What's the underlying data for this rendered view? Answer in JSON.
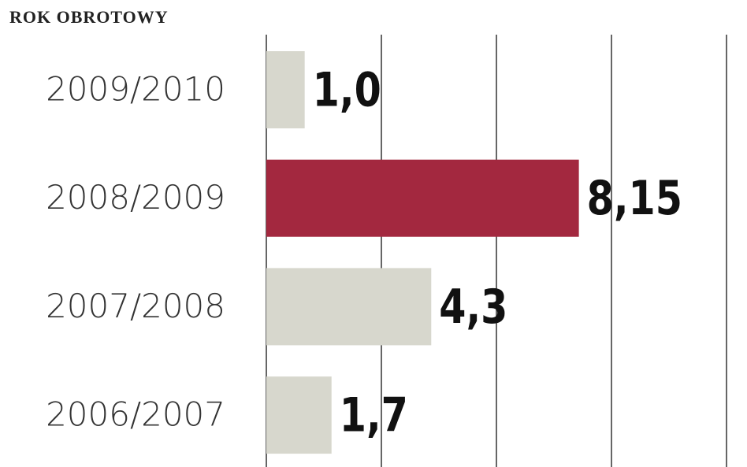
{
  "chart_data": {
    "type": "barh",
    "title": "ROK OBROTOWY",
    "categories": [
      "2009/2010",
      "2008/2009",
      "2007/2008",
      "2006/2007"
    ],
    "values": [
      1.0,
      8.15,
      4.3,
      1.7
    ],
    "value_labels": [
      "1,0",
      "8,15",
      "4,3",
      "1,7"
    ],
    "colors": [
      "#d7d7cd",
      "#a3283f",
      "#d7d7cd",
      "#d7d7cd"
    ],
    "xlim": [
      0,
      12
    ],
    "xticks": [
      0,
      3,
      6,
      9,
      12
    ],
    "grid": true
  }
}
